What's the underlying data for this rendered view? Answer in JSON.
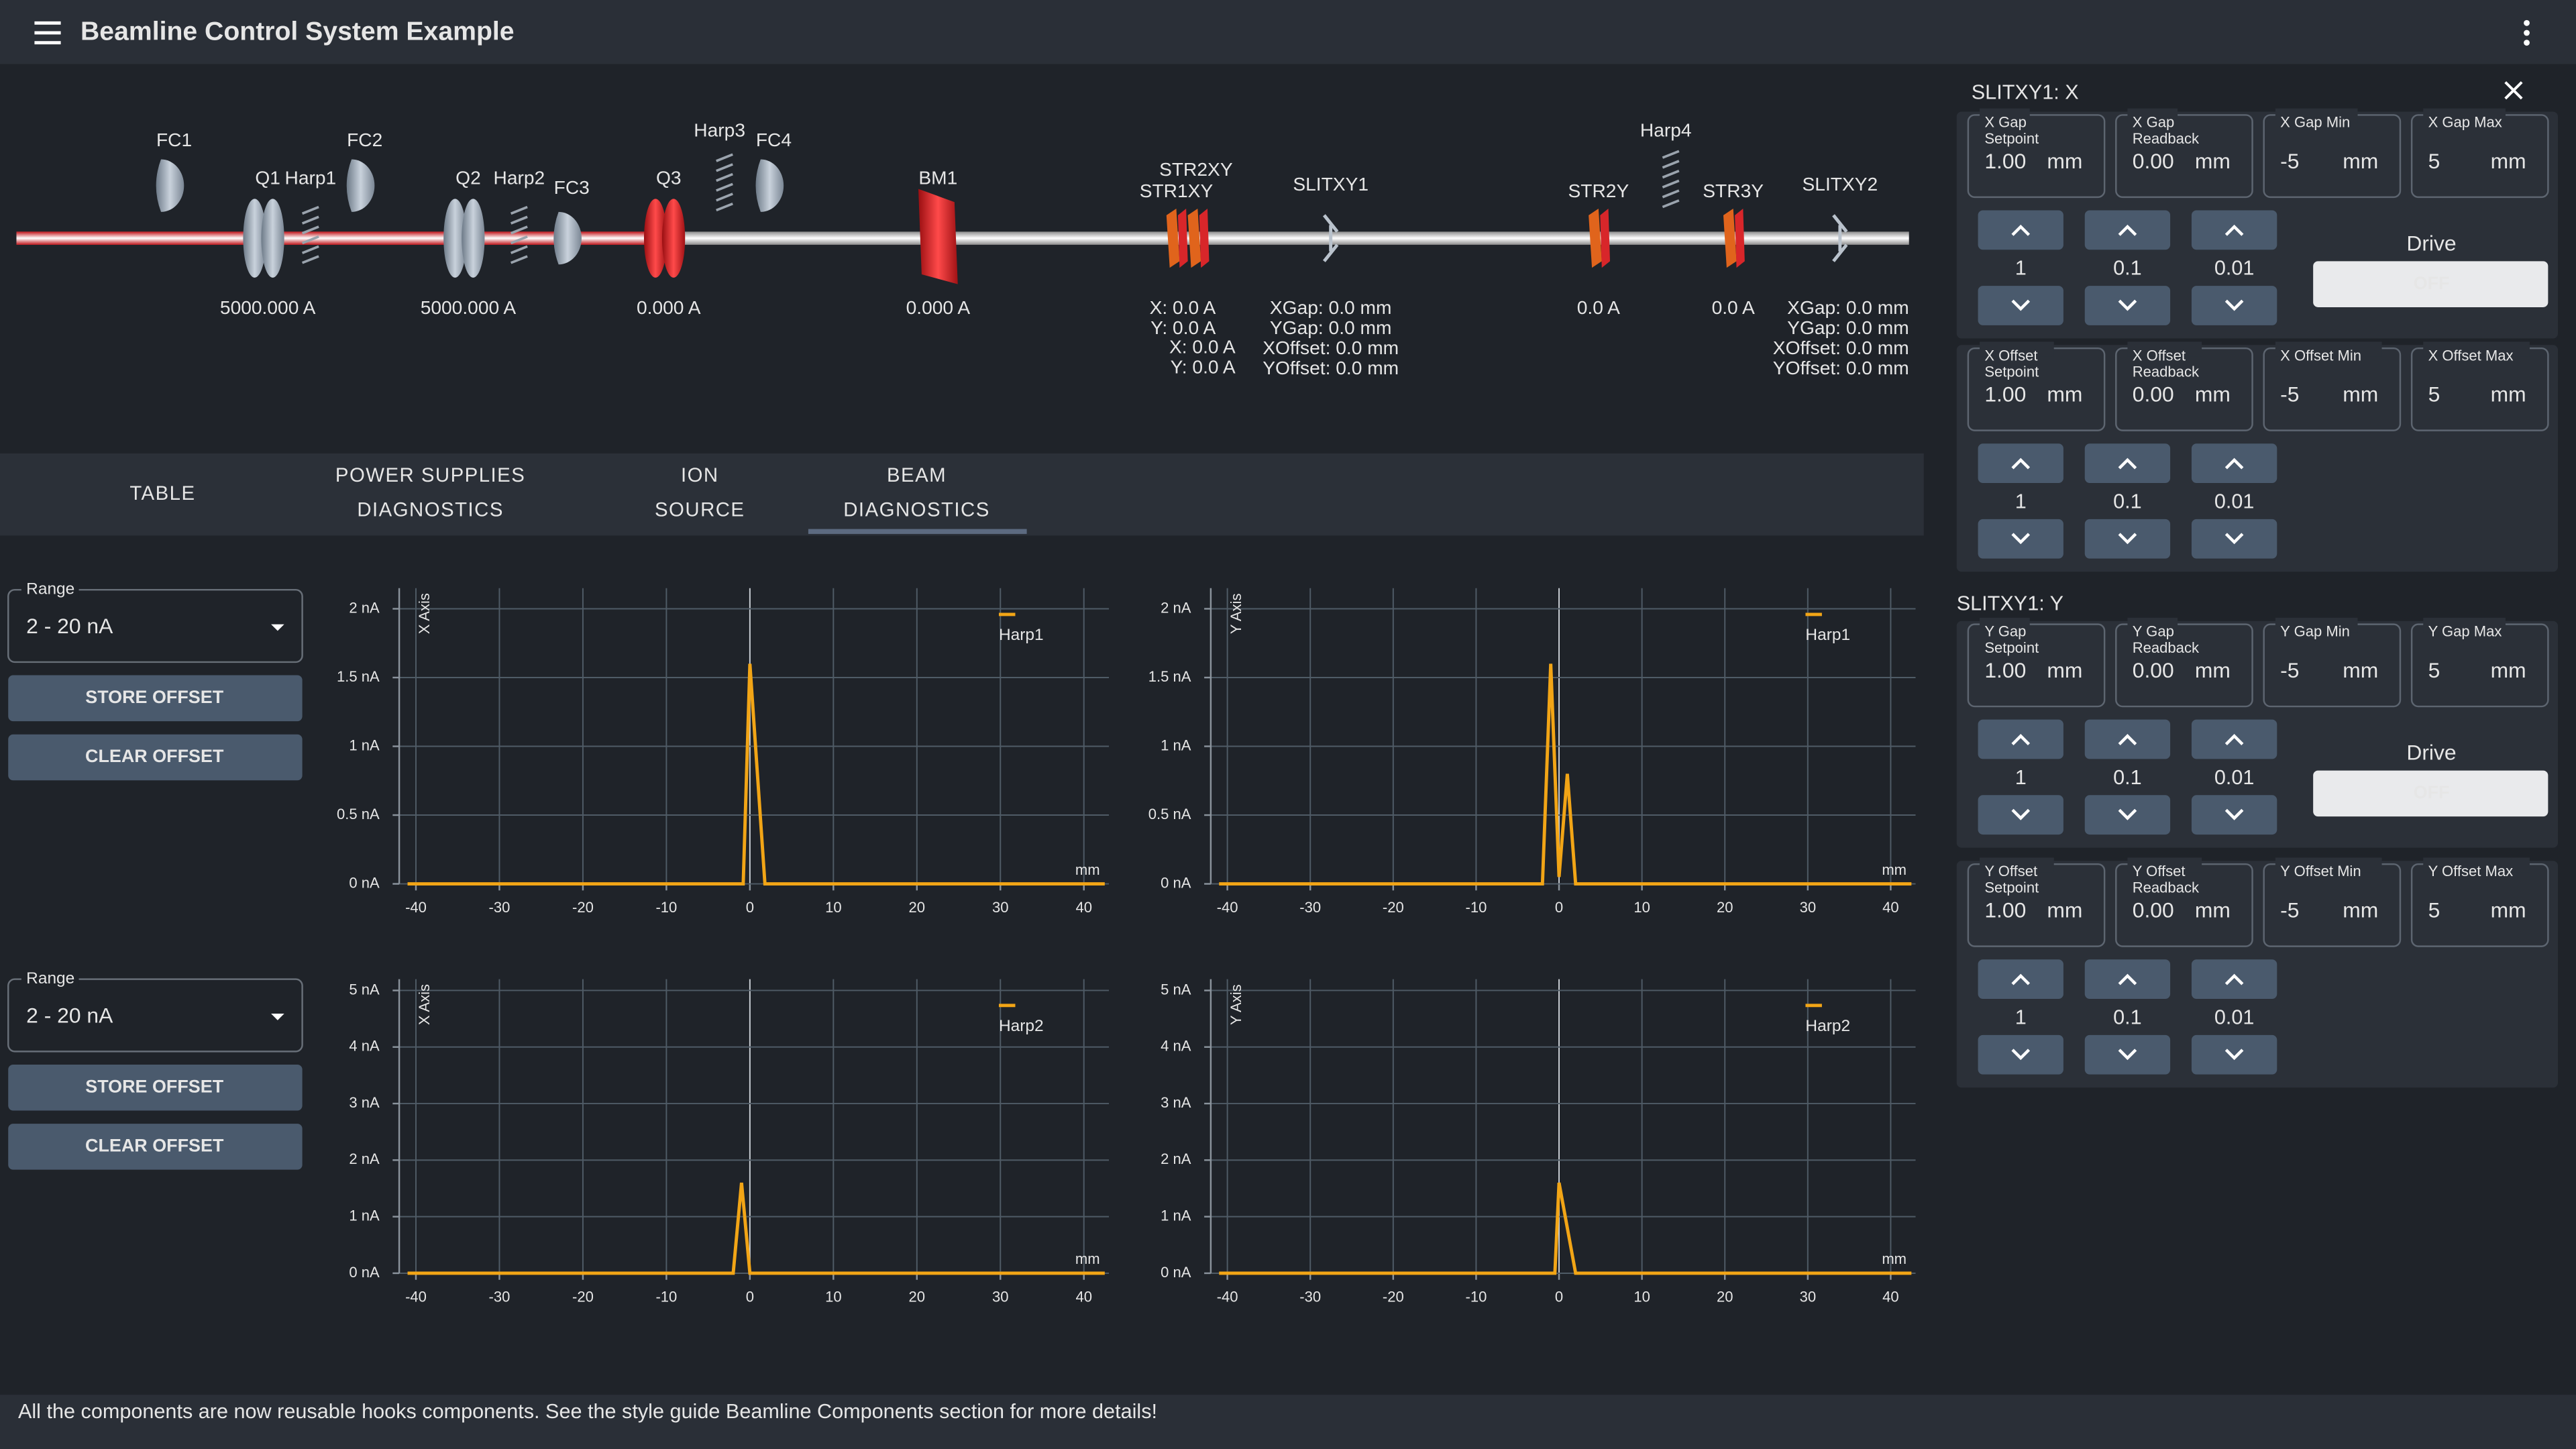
{
  "header": {
    "title": "Beamline Control System Example"
  },
  "beamline": {
    "components": [
      {
        "label": "FC1"
      },
      {
        "label": "Q1",
        "readout": [
          "5000.000 A"
        ]
      },
      {
        "label": "Harp1"
      },
      {
        "label": "FC2"
      },
      {
        "label": "Q2",
        "readout": [
          "5000.000 A"
        ]
      },
      {
        "label": "Harp2"
      },
      {
        "label": "FC3"
      },
      {
        "label": "Q3",
        "readout": [
          "0.000 A"
        ]
      },
      {
        "label": "Harp3"
      },
      {
        "label": "FC4"
      },
      {
        "label": "BM1",
        "readout": [
          "0.000 A"
        ]
      },
      {
        "label": "STR2XY",
        "readout": [
          "X: 0.0 A",
          "Y: 0.0 A"
        ]
      },
      {
        "label": "STR1XY",
        "readout": [
          "X: 0.0 A",
          "Y: 0.0 A"
        ]
      },
      {
        "label": "SLITXY1",
        "readout": [
          "XGap: 0.0 mm",
          "YGap: 0.0 mm",
          "XOffset: 0.0 mm",
          "YOffset: 0.0 mm"
        ]
      },
      {
        "label": "STR2Y",
        "readout": [
          "0.0 A"
        ]
      },
      {
        "label": "Harp4"
      },
      {
        "label": "STR3Y",
        "readout": [
          "0.0 A"
        ]
      },
      {
        "label": "SLITXY2",
        "readout": [
          "XGap: 0.0 mm",
          "YGap: 0.0 mm",
          "XOffset: 0.0 mm",
          "YOffset: 0.0 mm"
        ]
      }
    ]
  },
  "tabs": [
    [
      "TABLE"
    ],
    [
      "POWER SUPPLIES",
      "DIAGNOSTICS"
    ],
    [
      "ION",
      "SOURCE"
    ],
    [
      "BEAM",
      "DIAGNOSTICS"
    ]
  ],
  "selected_tab": 3,
  "range_controls": [
    {
      "label": "Range",
      "value": "2 - 20 nA",
      "buttons": [
        "STORE OFFSET",
        "CLEAR OFFSET"
      ]
    },
    {
      "label": "Range",
      "value": "2 - 20 nA",
      "buttons": [
        "STORE OFFSET",
        "CLEAR OFFSET"
      ]
    }
  ],
  "chart_data": [
    {
      "type": "line",
      "axis_label": "X Axis",
      "x_unit": "mm",
      "xlim": [
        -42,
        43
      ],
      "xticks": [
        -40,
        -30,
        -20,
        -10,
        0,
        10,
        20,
        30,
        40
      ],
      "ylim": [
        0,
        2.15
      ],
      "yticks": [
        {
          "value": 0,
          "label": "0 nA"
        },
        {
          "value": 0.5,
          "label": "0.5 nA"
        },
        {
          "value": 1,
          "label": "1 nA"
        },
        {
          "value": 1.5,
          "label": "1.5 nA"
        },
        {
          "value": 2,
          "label": "2 nA"
        }
      ],
      "grid": true,
      "legend": "top-right",
      "series": [
        {
          "name": "Harp1",
          "color": "#f2a516",
          "x": [
            -41,
            -0.8,
            0,
            1.8,
            42.5
          ],
          "values": [
            0,
            0,
            1.6,
            0,
            0
          ]
        }
      ]
    },
    {
      "type": "line",
      "axis_label": "Y Axis",
      "x_unit": "mm",
      "xlim": [
        -42,
        43
      ],
      "xticks": [
        -40,
        -30,
        -20,
        -10,
        0,
        10,
        20,
        30,
        40
      ],
      "ylim": [
        0,
        2.15
      ],
      "yticks": [
        {
          "value": 0,
          "label": "0 nA"
        },
        {
          "value": 0.5,
          "label": "0.5 nA"
        },
        {
          "value": 1,
          "label": "1 nA"
        },
        {
          "value": 1.5,
          "label": "1.5 nA"
        },
        {
          "value": 2,
          "label": "2 nA"
        }
      ],
      "grid": true,
      "legend": "top-right",
      "series": [
        {
          "name": "Harp1",
          "color": "#f2a516",
          "x": [
            -41,
            -2,
            -1,
            0,
            1,
            2,
            42.5
          ],
          "values": [
            0,
            0,
            1.6,
            0.05,
            0.8,
            0,
            0
          ]
        }
      ]
    },
    {
      "type": "line",
      "axis_label": "X Axis",
      "x_unit": "mm",
      "xlim": [
        -42,
        43
      ],
      "xticks": [
        -40,
        -30,
        -20,
        -10,
        0,
        10,
        20,
        30,
        40
      ],
      "ylim": [
        0,
        5.2
      ],
      "yticks": [
        {
          "value": 0,
          "label": "0 nA"
        },
        {
          "value": 1,
          "label": "1 nA"
        },
        {
          "value": 2,
          "label": "2 nA"
        },
        {
          "value": 3,
          "label": "3 nA"
        },
        {
          "value": 4,
          "label": "4 nA"
        },
        {
          "value": 5,
          "label": "5 nA"
        }
      ],
      "grid": true,
      "legend": "top-right",
      "series": [
        {
          "name": "Harp2",
          "color": "#f2a516",
          "x": [
            -41,
            -2,
            -1,
            0,
            42.5
          ],
          "values": [
            0,
            0,
            1.6,
            0,
            0
          ]
        }
      ]
    },
    {
      "type": "line",
      "axis_label": "Y Axis",
      "x_unit": "mm",
      "xlim": [
        -42,
        43
      ],
      "xticks": [
        -40,
        -30,
        -20,
        -10,
        0,
        10,
        20,
        30,
        40
      ],
      "ylim": [
        0,
        5.2
      ],
      "yticks": [
        {
          "value": 0,
          "label": "0 nA"
        },
        {
          "value": 1,
          "label": "1 nA"
        },
        {
          "value": 2,
          "label": "2 nA"
        },
        {
          "value": 3,
          "label": "3 nA"
        },
        {
          "value": 4,
          "label": "4 nA"
        },
        {
          "value": 5,
          "label": "5 nA"
        }
      ],
      "grid": true,
      "legend": "top-right",
      "series": [
        {
          "name": "Harp2",
          "color": "#f2a516",
          "x": [
            -41,
            -0.5,
            0,
            2,
            42.5
          ],
          "values": [
            0,
            0,
            1.6,
            0,
            0
          ]
        }
      ]
    }
  ],
  "slit_panels": [
    {
      "title": "SLITXY1: X",
      "groups": [
        {
          "fields": [
            {
              "label": [
                "X Gap",
                "Setpoint"
              ],
              "value": "1.00",
              "unit": "mm"
            },
            {
              "label": [
                "X Gap",
                "Readback"
              ],
              "value": "0.00",
              "unit": "mm"
            },
            {
              "label": [
                "X Gap Min"
              ],
              "value": "-5",
              "unit": "mm"
            },
            {
              "label": [
                "X Gap Max"
              ],
              "value": "5",
              "unit": "mm"
            }
          ],
          "steps": [
            "1",
            "0.1",
            "0.01"
          ],
          "drive": {
            "label": "Drive",
            "state": "OFF"
          }
        },
        {
          "fields": [
            {
              "label": [
                "X Offset",
                "Setpoint"
              ],
              "value": "1.00",
              "unit": "mm"
            },
            {
              "label": [
                "X Offset",
                "Readback"
              ],
              "value": "0.00",
              "unit": "mm"
            },
            {
              "label": [
                "X Offset Min"
              ],
              "value": "-5",
              "unit": "mm"
            },
            {
              "label": [
                "X Offset Max"
              ],
              "value": "5",
              "unit": "mm"
            }
          ],
          "steps": [
            "1",
            "0.1",
            "0.01"
          ]
        }
      ]
    },
    {
      "title": "SLITXY1: Y",
      "groups": [
        {
          "fields": [
            {
              "label": [
                "Y Gap",
                "Setpoint"
              ],
              "value": "1.00",
              "unit": "mm"
            },
            {
              "label": [
                "Y Gap",
                "Readback"
              ],
              "value": "0.00",
              "unit": "mm"
            },
            {
              "label": [
                "Y Gap Min"
              ],
              "value": "-5",
              "unit": "mm"
            },
            {
              "label": [
                "Y Gap Max"
              ],
              "value": "5",
              "unit": "mm"
            }
          ],
          "steps": [
            "1",
            "0.1",
            "0.01"
          ],
          "drive": {
            "label": "Drive",
            "state": "OFF"
          }
        },
        {
          "fields": [
            {
              "label": [
                "Y Offset",
                "Setpoint"
              ],
              "value": "1.00",
              "unit": "mm"
            },
            {
              "label": [
                "Y Offset",
                "Readback"
              ],
              "value": "0.00",
              "unit": "mm"
            },
            {
              "label": [
                "Y Offset Min"
              ],
              "value": "-5",
              "unit": "mm"
            },
            {
              "label": [
                "Y Offset Max"
              ],
              "value": "5",
              "unit": "mm"
            }
          ],
          "steps": [
            "1",
            "0.1",
            "0.01"
          ]
        }
      ]
    }
  ],
  "footer": {
    "message": "All the components are now reusable hooks components. See the style guide Beamline Components section for more details!"
  }
}
